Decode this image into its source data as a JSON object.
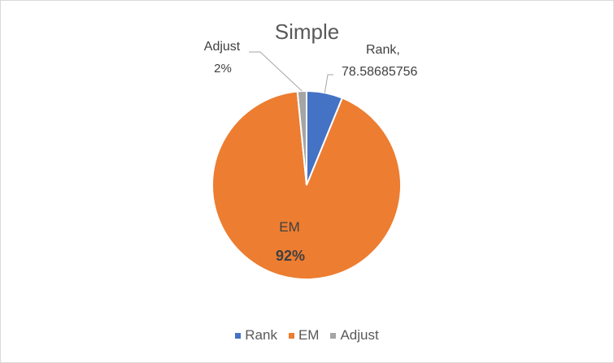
{
  "chart_data": {
    "type": "pie",
    "title": "Simple",
    "series": [
      {
        "name": "Rank",
        "value": 78.58685756,
        "label_lines": [
          "Rank,",
          "78.58685756"
        ],
        "color": "#4472c4"
      },
      {
        "name": "EM",
        "value": 1174.9,
        "label_lines": [
          "EM",
          "92%"
        ],
        "color": "#ed7d31"
      },
      {
        "name": "Adjust",
        "value": 19.8,
        "label_lines": [
          "Adjust",
          "2%"
        ],
        "color": "#a5a5a5"
      }
    ],
    "legend": {
      "position": "bottom",
      "items": [
        "Rank",
        "EM",
        "Adjust"
      ]
    }
  }
}
